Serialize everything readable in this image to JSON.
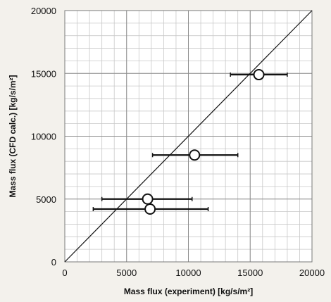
{
  "chart_data": {
    "type": "scatter",
    "title": "",
    "xlabel": "Mass flux  (experiment) [kg/s/m²]",
    "ylabel": "Mass flux  (CFD calc.) [kg/s/m²]",
    "xlim": [
      0,
      20000
    ],
    "ylim": [
      0,
      20000
    ],
    "x_major_ticks": [
      0,
      5000,
      10000,
      15000,
      20000
    ],
    "y_major_ticks": [
      0,
      5000,
      10000,
      15000,
      20000
    ],
    "x_tick_labels": [
      "0",
      "5000",
      "10000",
      "15000",
      "20000"
    ],
    "y_tick_labels": [
      "0",
      "5000",
      "10000",
      "15000",
      "20000"
    ],
    "minor_step": 1000,
    "grid": true,
    "reference_line": {
      "x": [
        0,
        20000
      ],
      "y": [
        0,
        20000
      ]
    },
    "points": [
      {
        "x": 15700,
        "y": 14900,
        "x_err_low": 13400,
        "x_err_high": 18000
      },
      {
        "x": 10500,
        "y": 8500,
        "x_err_low": 7100,
        "x_err_high": 14000
      },
      {
        "x": 6700,
        "y": 5000,
        "x_err_low": 3000,
        "x_err_high": 10300
      },
      {
        "x": 6900,
        "y": 4200,
        "x_err_low": 2300,
        "x_err_high": 11600
      }
    ],
    "colors": {
      "background": "#f3f1ec",
      "plot_area": "#ffffff",
      "minor_grid": "#c8c8c8",
      "major_grid": "#8c8c8c",
      "marker": "#111111"
    }
  }
}
